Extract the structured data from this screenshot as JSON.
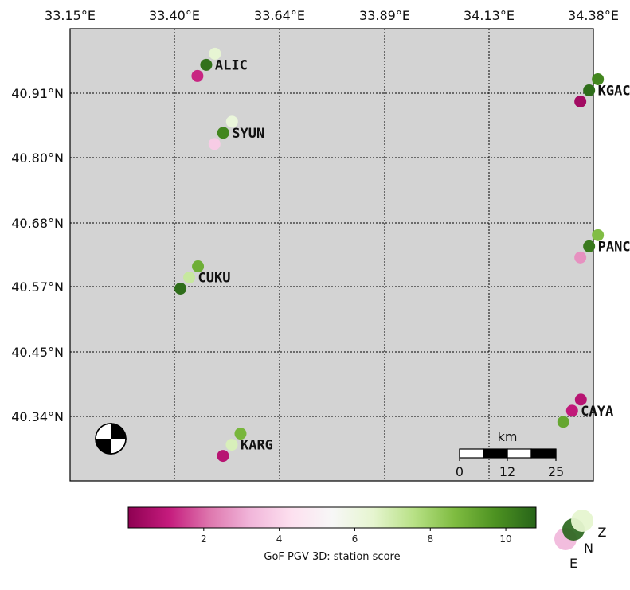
{
  "map": {
    "lon_ticks": [
      "33.15°E",
      "33.40°E",
      "33.64°E",
      "33.89°E",
      "34.13°E",
      "34.38°E"
    ],
    "lat_ticks": [
      "40.91°N",
      "40.80°N",
      "40.68°N",
      "40.57°N",
      "40.45°N",
      "40.34°N"
    ],
    "background_color": "#d3d3d3",
    "grid": "dotted",
    "focal_mechanism_icon": "beachball-icon"
  },
  "stations": [
    {
      "name": "ALIC",
      "lon": 33.47,
      "lat": 40.96,
      "scores": {
        "Z": 6.4,
        "N": 10.5,
        "E": 1.2
      }
    },
    {
      "name": "KGAC",
      "lon": 34.37,
      "lat": 40.915,
      "scores": {
        "Z": 10.0,
        "N": 10.6,
        "E": 0.4
      }
    },
    {
      "name": "SYUN",
      "lon": 33.51,
      "lat": 40.84,
      "scores": {
        "Z": 6.2,
        "N": 10.0,
        "E": 3.8
      }
    },
    {
      "name": "CUKU",
      "lon": 33.43,
      "lat": 40.585,
      "scores": {
        "Z": 9.0,
        "N": 7.2,
        "E": 10.6
      }
    },
    {
      "name": "PANC",
      "lon": 34.37,
      "lat": 40.64,
      "scores": {
        "Z": 8.6,
        "N": 10.3,
        "E": 2.6
      }
    },
    {
      "name": "CAYA",
      "lon": 34.33,
      "lat": 40.35,
      "scores": {
        "Z": 0.8,
        "N": 1.0,
        "E": 9.2
      }
    },
    {
      "name": "KARG",
      "lon": 33.53,
      "lat": 40.29,
      "scores": {
        "Z": 8.8,
        "N": 6.8,
        "E": 0.8
      }
    }
  ],
  "scale_bar": {
    "unit": "km",
    "ticks": [
      "0",
      "12",
      "25"
    ]
  },
  "colorbar": {
    "label": "GoF PGV 3D: station score",
    "ticks": [
      "2",
      "4",
      "6",
      "8",
      "10"
    ],
    "range": [
      0,
      10.8
    ],
    "colors": [
      "#8e0152",
      "#c51b7d",
      "#de77ae",
      "#f1b6da",
      "#fde0ef",
      "#f7f7f7",
      "#e6f5d0",
      "#b8e186",
      "#7fbc41",
      "#4d9221",
      "#276419"
    ]
  },
  "component_legend": {
    "labels": [
      "Z",
      "N",
      "E"
    ]
  }
}
